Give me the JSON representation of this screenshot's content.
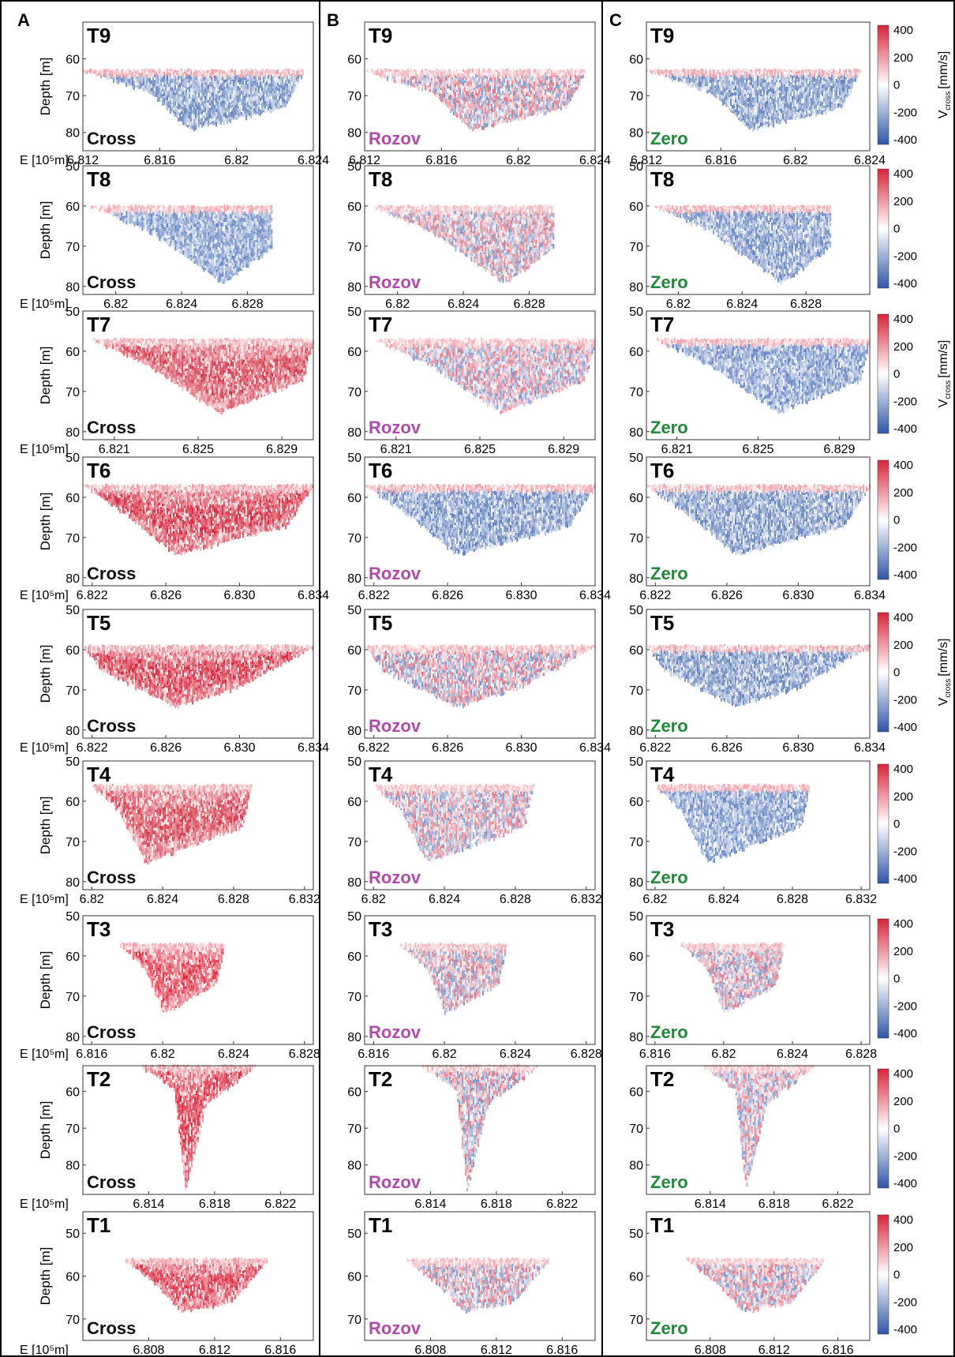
{
  "figure": {
    "columns": [
      {
        "letter": "A",
        "label": "Cross",
        "label_color": "#111111"
      },
      {
        "letter": "B",
        "label": "Rozov",
        "label_color": "#b04aa8"
      },
      {
        "letter": "C",
        "label": "Zero",
        "label_color": "#1e8a3a"
      }
    ],
    "x_axis_label": "E [10⁵m]",
    "y_axis_label": "Depth [m]",
    "colorbar": {
      "ticks": [
        "400",
        "200",
        "0",
        "-200",
        "-400"
      ],
      "label_main": "V",
      "label_sub": "cross",
      "label_unit": "[mm/s]",
      "colors": {
        "pos": "#d8243a",
        "neg": "#2e56a6",
        "mid": "#ffffff"
      }
    }
  },
  "chart_data": [
    {
      "type": "heatmap",
      "title": "T9",
      "ylim": [
        50,
        85
      ],
      "xlim": [
        6.812,
        6.824
      ],
      "yticks": [
        "60",
        "70",
        "80"
      ],
      "xticks": [
        "6.812",
        "6.816",
        "6.82",
        "6.824"
      ],
      "section": {
        "x_start": 6.812,
        "x_end": 6.8235,
        "bottom_left": 6.8155,
        "bottom_center": 6.8175,
        "bottom_right": 6.8225,
        "top_depth": 63,
        "max_depth": 79
      },
      "dominant_sign": {
        "A": "neg",
        "B": "mixed",
        "C": "neg"
      }
    },
    {
      "type": "heatmap",
      "title": "T8",
      "ylim": [
        50,
        82
      ],
      "xlim": [
        6.818,
        6.832
      ],
      "yticks": [
        "50",
        "60",
        "70",
        "80"
      ],
      "xticks": [
        "6.82",
        "6.824",
        "6.828"
      ],
      "section": {
        "x_start": 6.8185,
        "x_end": 6.8295,
        "bottom_left": 6.822,
        "bottom_center": 6.8265,
        "bottom_right": 6.8295,
        "top_depth": 60,
        "max_depth": 79
      },
      "dominant_sign": {
        "A": "neg",
        "B": "mixed",
        "C": "neg"
      }
    },
    {
      "type": "heatmap",
      "title": "T7",
      "ylim": [
        50,
        82
      ],
      "xlim": [
        6.8195,
        6.8305
      ],
      "yticks": [
        "50",
        "60",
        "70",
        "80"
      ],
      "xticks": [
        "6.821",
        "6.825",
        "6.829"
      ],
      "section": {
        "x_start": 6.82,
        "x_end": 6.8305,
        "bottom_left": 6.8225,
        "bottom_center": 6.826,
        "bottom_right": 6.83,
        "top_depth": 57,
        "max_depth": 75
      },
      "dominant_sign": {
        "A": "pos",
        "B": "mixed",
        "C": "neg"
      }
    },
    {
      "type": "heatmap",
      "title": "T6",
      "ylim": [
        50,
        82
      ],
      "xlim": [
        6.8215,
        6.834
      ],
      "yticks": [
        "50",
        "60",
        "70",
        "80"
      ],
      "xticks": [
        "6.822",
        "6.826",
        "6.830",
        "6.834"
      ],
      "section": {
        "x_start": 6.8215,
        "x_end": 6.834,
        "bottom_left": 6.8235,
        "bottom_center": 6.8265,
        "bottom_right": 6.8325,
        "top_depth": 57,
        "max_depth": 74
      },
      "dominant_sign": {
        "A": "pos",
        "B": "neg",
        "C": "neg"
      }
    },
    {
      "type": "heatmap",
      "title": "T5",
      "ylim": [
        50,
        82
      ],
      "xlim": [
        6.8215,
        6.834
      ],
      "yticks": [
        "50",
        "60",
        "70",
        "80"
      ],
      "xticks": [
        "6.822",
        "6.826",
        "6.830",
        "6.834"
      ],
      "section": {
        "x_start": 6.8215,
        "x_end": 6.834,
        "bottom_left": 6.8225,
        "bottom_center": 6.8265,
        "bottom_right": 6.83,
        "top_depth": 59,
        "max_depth": 74
      },
      "dominant_sign": {
        "A": "pos",
        "B": "mixed",
        "C": "neg"
      }
    },
    {
      "type": "heatmap",
      "title": "T4",
      "ylim": [
        50,
        82
      ],
      "xlim": [
        6.8195,
        6.8325
      ],
      "yticks": [
        "50",
        "60",
        "70",
        "80"
      ],
      "xticks": [
        "6.82",
        "6.824",
        "6.828",
        "6.832"
      ],
      "section": {
        "x_start": 6.82,
        "x_end": 6.829,
        "bottom_left": 6.8215,
        "bottom_center": 6.823,
        "bottom_right": 6.8285,
        "top_depth": 56,
        "max_depth": 75
      },
      "dominant_sign": {
        "A": "pos",
        "B": "mixed",
        "C": "neg"
      }
    },
    {
      "type": "heatmap",
      "title": "T3",
      "ylim": [
        50,
        82
      ],
      "xlim": [
        6.8155,
        6.8285
      ],
      "yticks": [
        "50",
        "60",
        "70",
        "80"
      ],
      "xticks": [
        "6.816",
        "6.82",
        "6.824",
        "6.828"
      ],
      "section": {
        "x_start": 6.8175,
        "x_end": 6.8235,
        "bottom_left": 6.819,
        "bottom_center": 6.82,
        "bottom_right": 6.823,
        "top_depth": 57,
        "max_depth": 74
      },
      "dominant_sign": {
        "A": "pos",
        "B": "mixed",
        "C": "mixed"
      }
    },
    {
      "type": "heatmap",
      "title": "T2",
      "ylim": [
        53,
        88
      ],
      "xlim": [
        6.81,
        6.824
      ],
      "yticks": [
        "60",
        "70",
        "80"
      ],
      "xticks": [
        "6.814",
        "6.818",
        "6.822"
      ],
      "section": {
        "x_start": 6.8135,
        "x_end": 6.8205,
        "bottom_left": 6.8155,
        "bottom_center": 6.8162,
        "bottom_right": 6.8175,
        "top_depth": 53,
        "max_depth": 87
      },
      "dominant_sign": {
        "A": "pos",
        "B": "mixed",
        "C": "mixed"
      }
    },
    {
      "type": "heatmap",
      "title": "T1",
      "ylim": [
        45,
        75
      ],
      "xlim": [
        6.804,
        6.818
      ],
      "yticks": [
        "50",
        "60",
        "70"
      ],
      "xticks": [
        "6.808",
        "6.812",
        "6.816"
      ],
      "section": {
        "x_start": 6.8065,
        "x_end": 6.8152,
        "bottom_left": 6.8085,
        "bottom_center": 6.81,
        "bottom_right": 6.813,
        "top_depth": 56,
        "max_depth": 68
      },
      "dominant_sign": {
        "A": "pos",
        "B": "mixed",
        "C": "mixed"
      }
    }
  ]
}
